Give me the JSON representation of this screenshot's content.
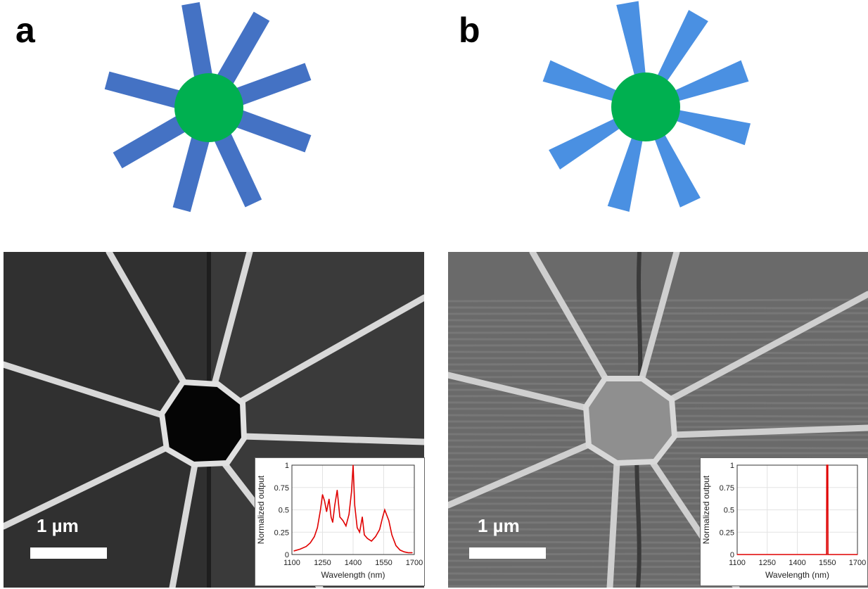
{
  "panels": {
    "a": {
      "letter": "a"
    },
    "b": {
      "letter": "b"
    }
  },
  "colors": {
    "hub": "#00b050",
    "spoke_a": "#4472c4",
    "spoke_b": "#4a90e2",
    "spectrum": "#e00000"
  },
  "scalebar": {
    "label": "1 µm"
  },
  "chart_data": [
    {
      "type": "line",
      "panel": "a",
      "xlabel": "Wavelength (nm)",
      "ylabel": "Normalized output",
      "xlim": [
        1100,
        1700
      ],
      "ylim": [
        0,
        1
      ],
      "xticks": [
        "1100",
        "1250",
        "1400",
        "1550",
        "1700"
      ],
      "yticks": [
        "0",
        "0.25",
        "0.5",
        "0.75",
        "1"
      ],
      "grid": true,
      "x": [
        1110,
        1140,
        1170,
        1190,
        1210,
        1225,
        1240,
        1250,
        1260,
        1270,
        1282,
        1292,
        1300,
        1310,
        1322,
        1335,
        1350,
        1365,
        1380,
        1392,
        1400,
        1408,
        1420,
        1432,
        1445,
        1455,
        1470,
        1490,
        1510,
        1530,
        1545,
        1555,
        1565,
        1575,
        1590,
        1610,
        1630,
        1650,
        1670,
        1690
      ],
      "y": [
        0.04,
        0.06,
        0.09,
        0.13,
        0.2,
        0.3,
        0.5,
        0.67,
        0.6,
        0.48,
        0.62,
        0.42,
        0.36,
        0.55,
        0.72,
        0.42,
        0.38,
        0.32,
        0.45,
        0.7,
        1.0,
        0.55,
        0.3,
        0.25,
        0.42,
        0.22,
        0.18,
        0.15,
        0.2,
        0.28,
        0.42,
        0.5,
        0.44,
        0.38,
        0.22,
        0.1,
        0.05,
        0.03,
        0.02,
        0.02
      ]
    },
    {
      "type": "line",
      "panel": "b",
      "xlabel": "Wavelength (nm)",
      "ylabel": "Normalized output",
      "xlim": [
        1100,
        1700
      ],
      "ylim": [
        0,
        1
      ],
      "xticks": [
        "1100",
        "1250",
        "1400",
        "1550",
        "1700"
      ],
      "yticks": [
        "0",
        "0.25",
        "0.5",
        "0.75",
        "1"
      ],
      "grid": true,
      "x": [
        1100,
        1546,
        1547,
        1550,
        1552,
        1553,
        1700
      ],
      "y": [
        0,
        0,
        1,
        1,
        1,
        0,
        0
      ]
    }
  ]
}
